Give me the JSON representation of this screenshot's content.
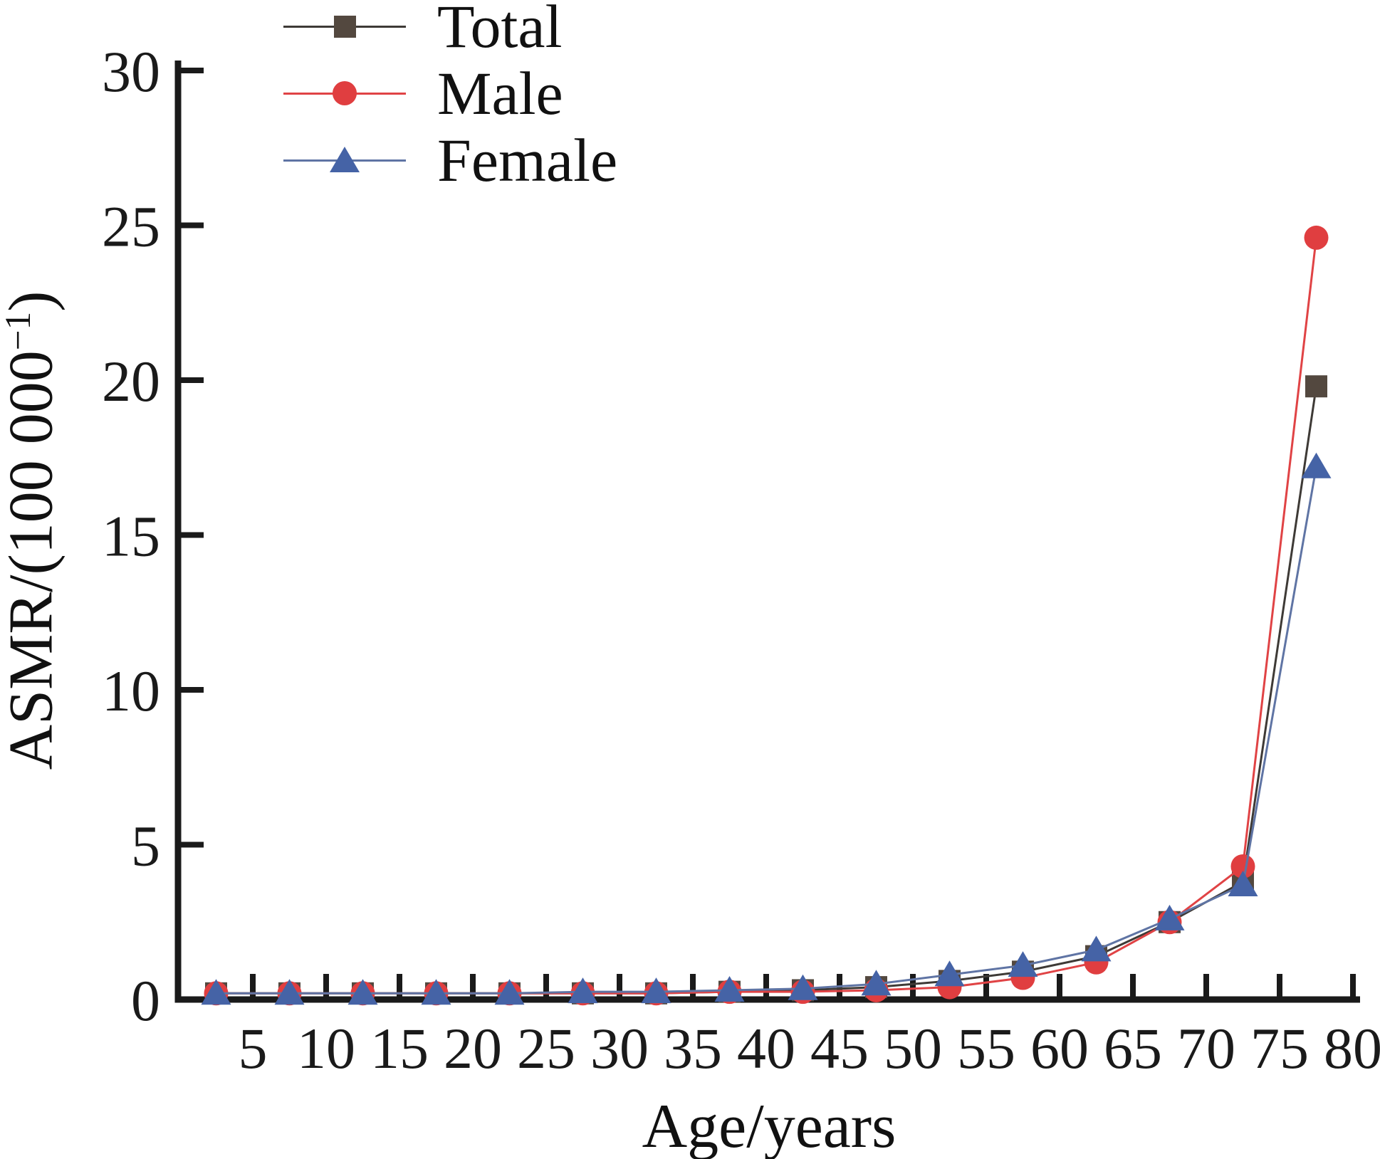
{
  "figure": {
    "background": "#ffffff",
    "axis_color": "#1a1a1a"
  },
  "chart_data": {
    "type": "line",
    "title": "",
    "xlabel": "Age/years",
    "ylabel": "ASMR/(100 000⁻¹)",
    "ylabel_parts": {
      "prefix": "ASMR/(100 000",
      "sup": "−1",
      "suffix": ")"
    },
    "grid": false,
    "legend_position": "top-left-inside",
    "xlim": [
      0,
      80.5
    ],
    "ylim": [
      0,
      30
    ],
    "x_ticks": [
      5,
      10,
      15,
      20,
      25,
      30,
      35,
      40,
      45,
      50,
      55,
      60,
      65,
      70,
      75,
      80
    ],
    "y_ticks": [
      0,
      5,
      10,
      15,
      20,
      25,
      30
    ],
    "x": [
      2.5,
      7.5,
      12.5,
      17.5,
      22.5,
      27.5,
      32.5,
      37.5,
      42.5,
      47.5,
      52.5,
      57.5,
      62.5,
      67.5,
      72.5,
      77.5
    ],
    "series": [
      {
        "name": "Total",
        "marker": "square",
        "color": "#53483f",
        "line_color": "#3e3a36",
        "values": [
          0.2,
          0.2,
          0.2,
          0.2,
          0.2,
          0.2,
          0.2,
          0.25,
          0.3,
          0.4,
          0.6,
          0.9,
          1.4,
          2.5,
          3.8,
          19.8
        ]
      },
      {
        "name": "Male",
        "marker": "circle",
        "color": "#e03e40",
        "line_color": "#e04345",
        "values": [
          0.2,
          0.2,
          0.2,
          0.2,
          0.2,
          0.2,
          0.2,
          0.25,
          0.25,
          0.3,
          0.4,
          0.7,
          1.2,
          2.5,
          4.3,
          24.6
        ]
      },
      {
        "name": "Female",
        "marker": "triangle",
        "color": "#4563a6",
        "line_color": "#5f74a4",
        "values": [
          0.2,
          0.2,
          0.2,
          0.2,
          0.2,
          0.25,
          0.25,
          0.3,
          0.35,
          0.5,
          0.8,
          1.1,
          1.6,
          2.6,
          3.7,
          17.2
        ]
      }
    ]
  }
}
